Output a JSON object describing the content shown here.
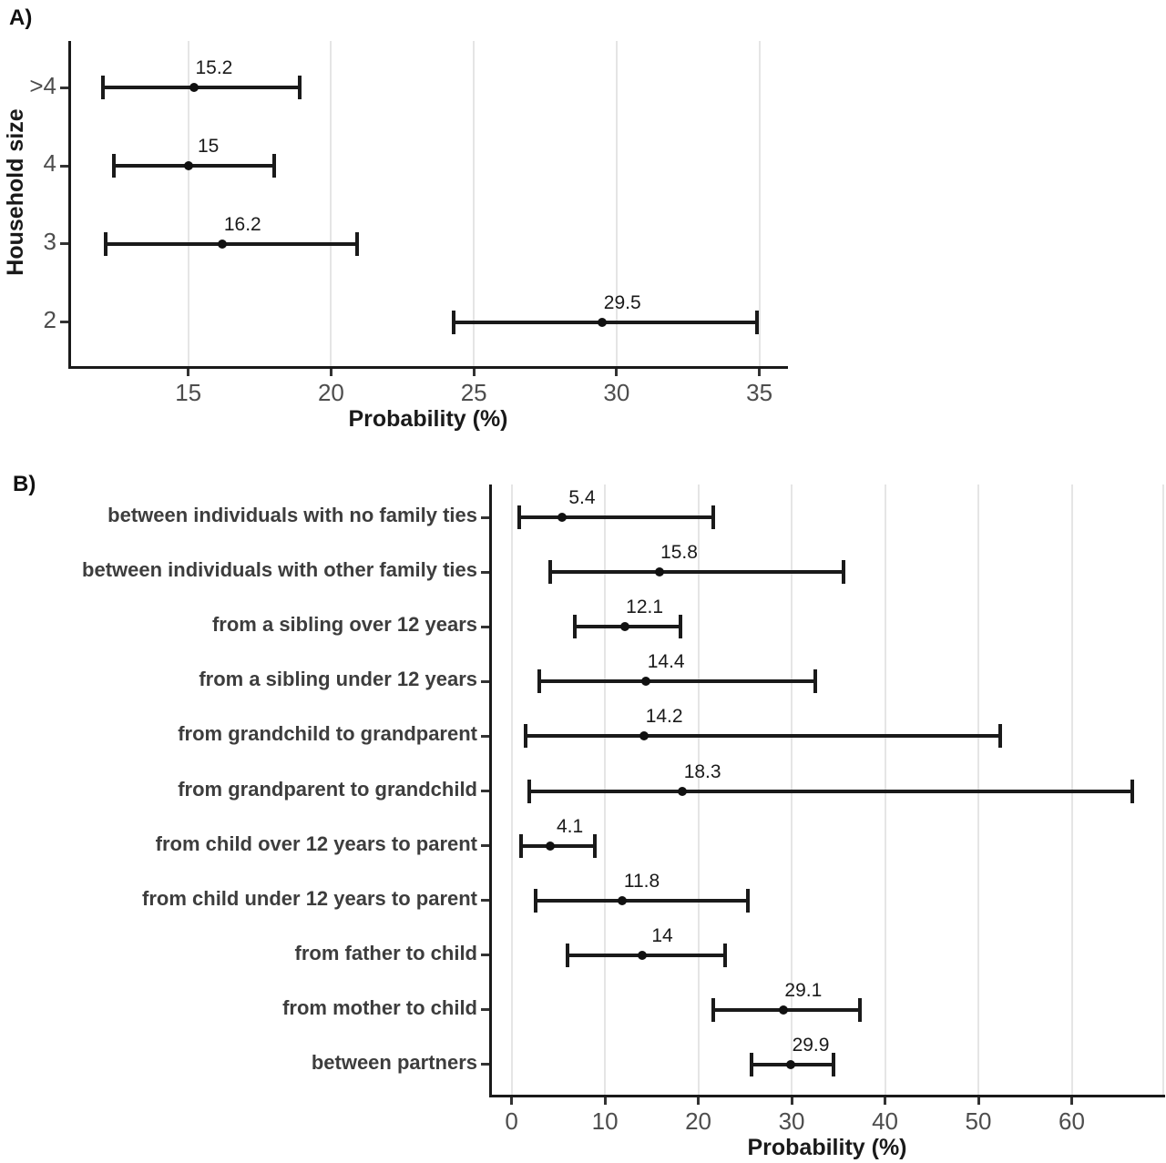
{
  "colors": {
    "background": "#ffffff",
    "errorbar": "#1a1a1a",
    "point": "#111111",
    "axis_line": "#1a1a1a",
    "gridline": "#e5e5e5",
    "tick_mark": "#333333",
    "tick_label": "#4d4d4d",
    "category_label": "#3d3d3d",
    "value_label": "#1a1a1a",
    "axis_title": "#1a1a1a"
  },
  "chart_data": [
    {
      "type": "scatter",
      "subtype": "horizontal-errorbar-forest",
      "panel_label": "A)",
      "title": "",
      "xlabel": "Probability (%)",
      "ylabel": "Household size",
      "xlim": [
        10.8,
        36.0
      ],
      "xticks": [
        15,
        20,
        25,
        30,
        35
      ],
      "gridlines": [
        15,
        20,
        25,
        30,
        35
      ],
      "grid": "on",
      "legend": "none",
      "rows": [
        {
          "category": ">4",
          "estimate": 15.2,
          "label": "15.2",
          "ci_low": 12.0,
          "ci_high": 18.9
        },
        {
          "category": "4",
          "estimate": 15.0,
          "label": "15",
          "ci_low": 12.4,
          "ci_high": 18.0
        },
        {
          "category": "3",
          "estimate": 16.2,
          "label": "16.2",
          "ci_low": 12.1,
          "ci_high": 20.9
        },
        {
          "category": "2",
          "estimate": 29.5,
          "label": "29.5",
          "ci_low": 24.3,
          "ci_high": 34.9
        }
      ]
    },
    {
      "type": "scatter",
      "subtype": "horizontal-errorbar-forest",
      "panel_label": "B)",
      "title": "",
      "xlabel": "Probability (%)",
      "ylabel": "",
      "xlim": [
        -2.4,
        70.0
      ],
      "xticks": [
        0,
        10,
        20,
        30,
        40,
        50,
        60
      ],
      "gridlines": [
        0,
        10,
        20,
        30,
        40,
        50,
        60,
        70
      ],
      "grid": "on",
      "legend": "none",
      "rows": [
        {
          "category": "between individuals with no family ties",
          "estimate": 5.4,
          "label": "5.4",
          "ci_low": 0.8,
          "ci_high": 21.6
        },
        {
          "category": "between individuals with other family ties",
          "estimate": 15.8,
          "label": "15.8",
          "ci_low": 4.1,
          "ci_high": 35.6
        },
        {
          "category": "from a sibling over 12 years",
          "estimate": 12.1,
          "label": "12.1",
          "ci_low": 6.8,
          "ci_high": 18.1
        },
        {
          "category": "from a sibling under 12 years",
          "estimate": 14.4,
          "label": "14.4",
          "ci_low": 3.0,
          "ci_high": 32.5
        },
        {
          "category": "from grandchild to grandparent",
          "estimate": 14.2,
          "label": "14.2",
          "ci_low": 1.5,
          "ci_high": 52.3
        },
        {
          "category": "from grandparent to grandchild",
          "estimate": 18.3,
          "label": "18.3",
          "ci_low": 1.9,
          "ci_high": 66.5
        },
        {
          "category": "from child over 12 years to parent",
          "estimate": 4.1,
          "label": "4.1",
          "ci_low": 1.0,
          "ci_high": 8.9
        },
        {
          "category": "from child under 12 years to parent",
          "estimate": 11.8,
          "label": "11.8",
          "ci_low": 2.6,
          "ci_high": 25.3
        },
        {
          "category": "from father to child",
          "estimate": 14.0,
          "label": "14",
          "ci_low": 6.0,
          "ci_high": 22.9
        },
        {
          "category": "from mother to child",
          "estimate": 29.1,
          "label": "29.1",
          "ci_low": 21.6,
          "ci_high": 37.3
        },
        {
          "category": "between partners",
          "estimate": 29.9,
          "label": "29.9",
          "ci_low": 25.7,
          "ci_high": 34.5
        }
      ]
    }
  ]
}
